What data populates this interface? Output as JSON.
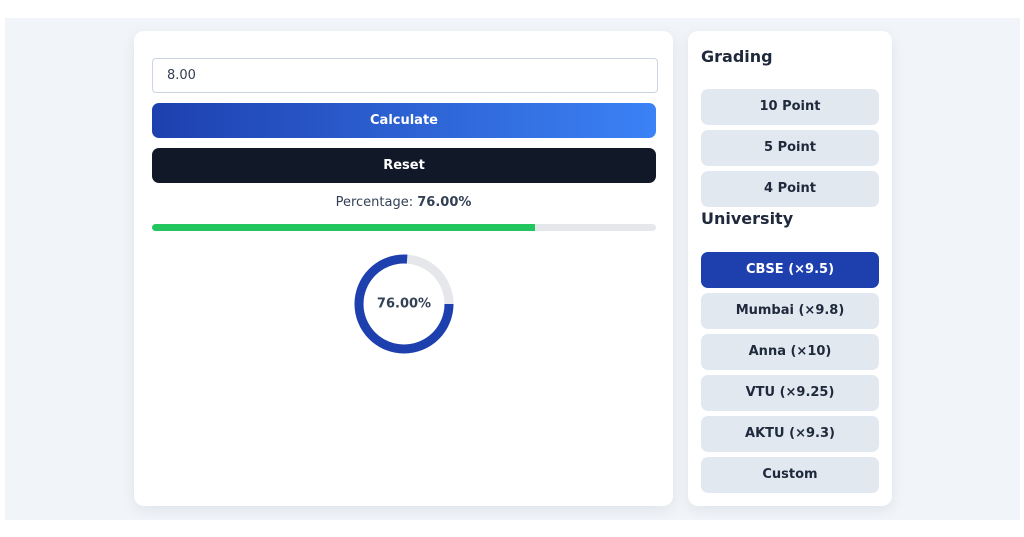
{
  "input": {
    "value": "8.00"
  },
  "buttons": {
    "calculate": "Calculate",
    "reset": "Reset"
  },
  "result": {
    "label": "Percentage:",
    "percentage": {
      "value": 76,
      "label": "76.00%"
    }
  },
  "sidebar": {
    "grading_title": "Grading",
    "grading": [
      "10 Point",
      "5 Point",
      "4 Point"
    ],
    "university_title": "University",
    "universities": [
      "CBSE (×9.5)",
      "Mumbai (×9.8)",
      "Anna (×10)",
      "VTU (×9.25)",
      "AKTU (×9.3)",
      "Custom"
    ],
    "active_university": 0
  }
}
